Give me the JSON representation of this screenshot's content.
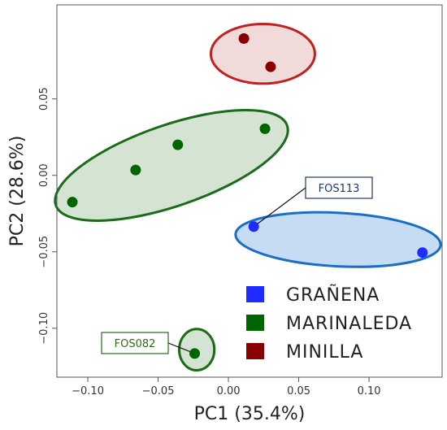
{
  "chart_data": {
    "type": "scatter",
    "xlabel": "PC1 (35.4%)",
    "ylabel": "PC2 (28.6%)",
    "xlim": [
      -0.122,
      0.152
    ],
    "ylim": [
      -0.132,
      0.1115
    ],
    "x_ticks": [
      -0.1,
      -0.05,
      0.0,
      0.05,
      0.1
    ],
    "x_tick_labels": [
      "−0.10",
      "−0.05",
      "0.00",
      "0.05",
      "0.10"
    ],
    "y_ticks": [
      -0.1,
      -0.05,
      0.0,
      0.05
    ],
    "y_tick_labels": [
      "−0.10",
      "−0.05",
      "0.00",
      "0.05"
    ],
    "grid": false,
    "legend_position": "bottom-right",
    "series": [
      {
        "name": "GRAÑENA",
        "color": "#1f2bff",
        "fill": "#c5dcf2",
        "edge": "#1a6fc4",
        "points": [
          {
            "x": 0.018,
            "y": -0.0335
          },
          {
            "x": 0.138,
            "y": -0.0505
          }
        ]
      },
      {
        "name": "MARINALEDA",
        "color": "#006400",
        "fill": "#d5e3d2",
        "edge": "#1a6b1a",
        "points": [
          {
            "x": -0.111,
            "y": -0.0175
          },
          {
            "x": -0.066,
            "y": 0.0035
          },
          {
            "x": -0.036,
            "y": 0.02
          },
          {
            "x": 0.026,
            "y": 0.0305
          },
          {
            "x": -0.024,
            "y": -0.1165
          }
        ]
      },
      {
        "name": "MINILLA",
        "color": "#8b0000",
        "fill": "#f0dada",
        "edge": "#c41e1e",
        "points": [
          {
            "x": 0.011,
            "y": 0.0895
          },
          {
            "x": 0.03,
            "y": 0.071
          }
        ]
      }
    ],
    "ellipses": [
      {
        "group": "MINILLA",
        "cx": 0.0245,
        "cy": 0.0795,
        "rx": 0.037,
        "ry": 0.0195,
        "angle": 0
      },
      {
        "group": "MARINALEDA",
        "cx": -0.0405,
        "cy": 0.0065,
        "rx": 0.087,
        "ry": 0.0265,
        "angle": 19
      },
      {
        "group": "GRAÑENA",
        "cx": 0.078,
        "cy": -0.042,
        "rx": 0.073,
        "ry": 0.0175,
        "angle": -3
      },
      {
        "group": "MARINALEDA",
        "cx": -0.0225,
        "cy": -0.114,
        "rx": 0.0125,
        "ry": 0.0135,
        "angle": 0
      }
    ],
    "annotations": [
      {
        "text": "FOS113",
        "point": {
          "x": 0.018,
          "y": -0.0335
        },
        "group": "GRAÑENA",
        "text_color": "#1a3a6b",
        "border_color": "#1a3a6b"
      },
      {
        "text": "FOS082",
        "point": {
          "x": -0.024,
          "y": -0.1165
        },
        "group": "MARINALEDA",
        "text_color": "#2d6a1a",
        "border_color": "#2d6a1a"
      }
    ]
  }
}
